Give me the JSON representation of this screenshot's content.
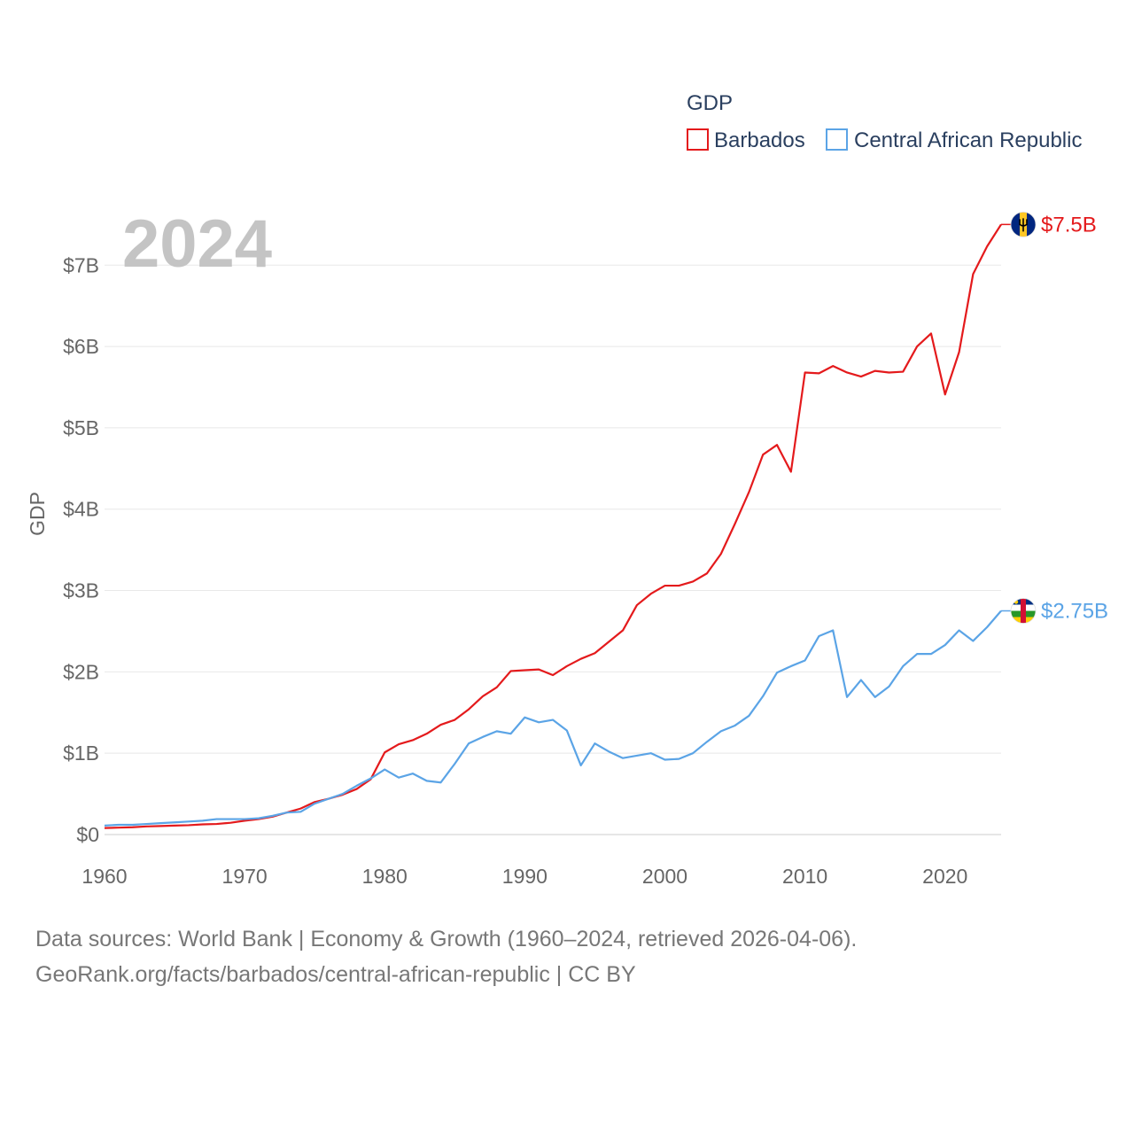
{
  "chart_data": {
    "type": "line",
    "title": "",
    "year_label": "2024",
    "xlabel": "",
    "ylabel": "GDP",
    "xlim": [
      1960,
      2024
    ],
    "ylim": [
      0,
      7700000000
    ],
    "x_ticks": [
      1960,
      1970,
      1980,
      1990,
      2000,
      2010,
      2020
    ],
    "x_tick_labels": [
      "1960",
      "1970",
      "1980",
      "1990",
      "2000",
      "2010",
      "2020"
    ],
    "y_ticks": [
      0,
      1000000000,
      2000000000,
      3000000000,
      4000000000,
      5000000000,
      6000000000,
      7000000000
    ],
    "y_tick_labels": [
      "$0",
      "$1B",
      "$2B",
      "$3B",
      "$4B",
      "$5B",
      "$6B",
      "$7B"
    ],
    "grid": true,
    "legend": {
      "title": "GDP",
      "position": "top-right"
    },
    "x": [
      1960,
      1961,
      1962,
      1963,
      1964,
      1965,
      1966,
      1967,
      1968,
      1969,
      1970,
      1971,
      1972,
      1973,
      1974,
      1975,
      1976,
      1977,
      1978,
      1979,
      1980,
      1981,
      1982,
      1983,
      1984,
      1985,
      1986,
      1987,
      1988,
      1989,
      1990,
      1991,
      1992,
      1993,
      1994,
      1995,
      1996,
      1997,
      1998,
      1999,
      2000,
      2001,
      2002,
      2003,
      2004,
      2005,
      2006,
      2007,
      2008,
      2009,
      2010,
      2011,
      2012,
      2013,
      2014,
      2015,
      2016,
      2017,
      2018,
      2019,
      2020,
      2021,
      2022,
      2023,
      2024
    ],
    "series": [
      {
        "name": "Barbados",
        "color": "#e41a1c",
        "end_label": "$7.5B",
        "values": [
          0.08,
          0.085,
          0.09,
          0.1,
          0.105,
          0.11,
          0.115,
          0.125,
          0.13,
          0.145,
          0.17,
          0.19,
          0.22,
          0.27,
          0.32,
          0.4,
          0.44,
          0.49,
          0.56,
          0.68,
          1.01,
          1.11,
          1.16,
          1.24,
          1.35,
          1.41,
          1.54,
          1.7,
          1.81,
          2.01,
          2.02,
          2.03,
          1.96,
          2.07,
          2.16,
          2.23,
          2.37,
          2.51,
          2.82,
          2.96,
          3.06,
          3.06,
          3.11,
          3.21,
          3.45,
          3.82,
          4.21,
          4.67,
          4.79,
          4.46,
          5.68,
          5.67,
          5.76,
          5.68,
          5.63,
          5.7,
          5.68,
          5.69,
          6.0,
          6.16,
          5.41,
          5.93,
          6.89,
          7.23,
          7.5
        ]
      },
      {
        "name": "Central African Republic",
        "color": "#5ba4e6",
        "end_label": "$2.75B",
        "values": [
          0.11,
          0.12,
          0.12,
          0.13,
          0.14,
          0.15,
          0.16,
          0.17,
          0.19,
          0.19,
          0.19,
          0.2,
          0.23,
          0.27,
          0.28,
          0.38,
          0.44,
          0.5,
          0.6,
          0.69,
          0.8,
          0.7,
          0.75,
          0.66,
          0.64,
          0.87,
          1.12,
          1.2,
          1.27,
          1.24,
          1.44,
          1.38,
          1.41,
          1.28,
          0.85,
          1.12,
          1.02,
          0.94,
          0.97,
          1.0,
          0.92,
          0.93,
          1.0,
          1.14,
          1.27,
          1.34,
          1.46,
          1.7,
          1.99,
          2.07,
          2.14,
          2.44,
          2.51,
          1.69,
          1.9,
          1.69,
          1.82,
          2.07,
          2.22,
          2.22,
          2.33,
          2.51,
          2.38,
          2.55,
          2.75
        ]
      }
    ]
  },
  "source": {
    "line1": "Data sources: World Bank | Economy & Growth (1960–2024, retrieved 2026-04-06).",
    "line2": "GeoRank.org/facts/barbados/central-african-republic | CC BY"
  },
  "flags": {
    "barbados": {
      "blue": "#00267f",
      "gold": "#ffc726",
      "trident": "#000000"
    },
    "central_african_republic": {
      "blue": "#003082",
      "white": "#ffffff",
      "green": "#289728",
      "yellow": "#ffce00",
      "red": "#d21034"
    }
  }
}
